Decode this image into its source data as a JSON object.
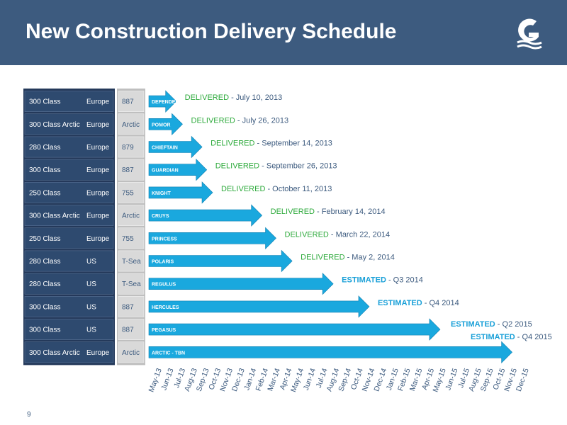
{
  "header": {
    "title": "New Construction Delivery Schedule"
  },
  "footer": {
    "page_number": "9"
  },
  "colors": {
    "header_bg": "#3d5b7f",
    "class_cell": "#2e4a6f",
    "hull_cell": "#d9d9d9",
    "arrow": "#1aa8de",
    "delivered": "#2eaa3c",
    "estimated": "#1aa0d8"
  },
  "chart_data": {
    "type": "gantt",
    "title": "New Construction Delivery Schedule",
    "x_ticks": [
      "May-13",
      "Jun-13",
      "Jul-13",
      "Aug-13",
      "Sep-13",
      "Oct-13",
      "Nov-13",
      "Dec-13",
      "Jan-14",
      "Feb-14",
      "Mar-14",
      "Apr-14",
      "May-14",
      "Jun-14",
      "Jul-14",
      "Aug-14",
      "Sep-14",
      "Oct-14",
      "Nov-14",
      "Dec-14",
      "Jan-15",
      "Feb-15",
      "Mar-15",
      "Apr-15",
      "May-15",
      "Jun-15",
      "Jul-15",
      "Aug-15",
      "Sep-15",
      "Oct-15",
      "Nov-15",
      "Dec-15"
    ],
    "xlim": [
      "2013-05-01",
      "2015-12-31"
    ],
    "rows": [
      {
        "class": "300 Class",
        "region": "Europe",
        "hull": "887",
        "vessel": "DEFENDER",
        "end": "2013-07-10",
        "status": "DELIVERED",
        "date_text": " - July 10, 2013"
      },
      {
        "class": "300 Class Arctic",
        "region": "Europe",
        "hull": "Arctic",
        "vessel": "POMOR",
        "end": "2013-07-26",
        "status": "DELIVERED",
        "date_text": " - July 26, 2013"
      },
      {
        "class": "280 Class",
        "region": "Europe",
        "hull": "879",
        "vessel": "CHIEFTAIN",
        "end": "2013-09-14",
        "status": "DELIVERED",
        "date_text": " - September 14, 2013"
      },
      {
        "class": "300 Class",
        "region": "Europe",
        "hull": "887",
        "vessel": "GUARDIAN",
        "end": "2013-09-26",
        "status": "DELIVERED",
        "date_text": " - September 26, 2013"
      },
      {
        "class": "250 Class",
        "region": "Europe",
        "hull": "755",
        "vessel": "KNIGHT",
        "end": "2013-10-11",
        "status": "DELIVERED",
        "date_text": " - October 11, 2013"
      },
      {
        "class": "300 Class Arctic",
        "region": "Europe",
        "hull": "Arctic",
        "vessel": "CRUYS",
        "end": "2014-02-14",
        "status": "DELIVERED",
        "date_text": " - February 14, 2014"
      },
      {
        "class": "250 Class",
        "region": "Europe",
        "hull": "755",
        "vessel": "PRINCESS",
        "end": "2014-03-22",
        "status": "DELIVERED",
        "date_text": " - March 22, 2014"
      },
      {
        "class": "280 Class",
        "region": "US",
        "hull": "T-Sea",
        "vessel": "POLARIS",
        "end": "2014-05-02",
        "status": "DELIVERED",
        "date_text": " - May 2, 2014"
      },
      {
        "class": "280 Class",
        "region": "US",
        "hull": "T-Sea",
        "vessel": "REGULUS",
        "end": "2014-08-15",
        "status": "ESTIMATED",
        "date_text": " - Q3 2014"
      },
      {
        "class": "300 Class",
        "region": "US",
        "hull": "887",
        "vessel": "HERCULES",
        "end": "2014-11-15",
        "status": "ESTIMATED",
        "date_text": " - Q4 2014"
      },
      {
        "class": "300 Class",
        "region": "US",
        "hull": "887",
        "vessel": "PEGASUS",
        "end": "2015-05-15",
        "status": "ESTIMATED",
        "date_text": " - Q2 2015"
      },
      {
        "class": "300 Class Arctic",
        "region": "Europe",
        "hull": "Arctic",
        "vessel": "ARCTIC - TBN",
        "end": "2015-11-15",
        "status": "ESTIMATED",
        "date_text": " - Q4 2015"
      }
    ]
  }
}
